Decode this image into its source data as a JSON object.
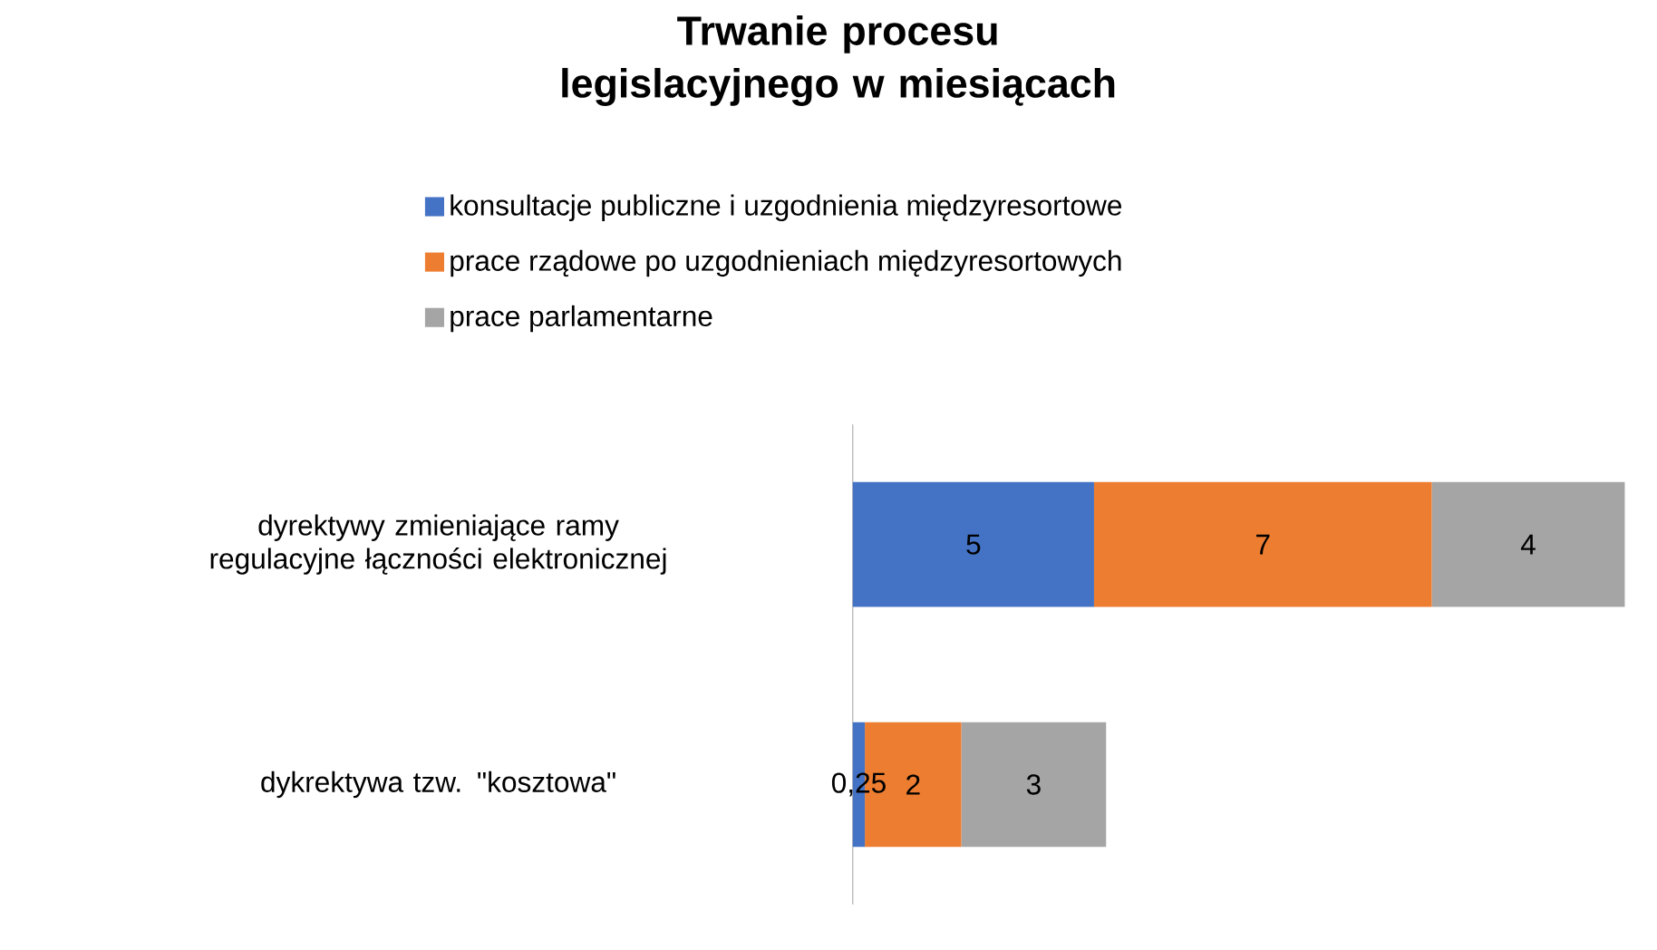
{
  "chart_data": {
    "type": "bar",
    "orientation": "horizontal",
    "stacked": true,
    "legend": "top",
    "title": "Trwanie procesu legislacyjnego w miesiącach",
    "categories": [
      "dyrektywy zmieniające ramy regulacyjne łączności elektronicznej",
      "dykrektywa tzw. \"kosztowa\""
    ],
    "series": [
      {
        "name": "konsultacje publiczne i uzgodnienia międzyresortowe",
        "color": "#4472c4",
        "values": [
          5,
          0.25
        ],
        "value_labels": [
          "5",
          "0,25"
        ]
      },
      {
        "name": "prace rządowe po uzgodnieniach międzyresortowych",
        "color": "#ed7d31",
        "values": [
          7,
          2
        ],
        "value_labels": [
          "7",
          "2"
        ]
      },
      {
        "name": "prace parlamentarne",
        "color": "#a5a5a5",
        "values": [
          4,
          3
        ],
        "value_labels": [
          "4",
          "3"
        ]
      }
    ]
  }
}
